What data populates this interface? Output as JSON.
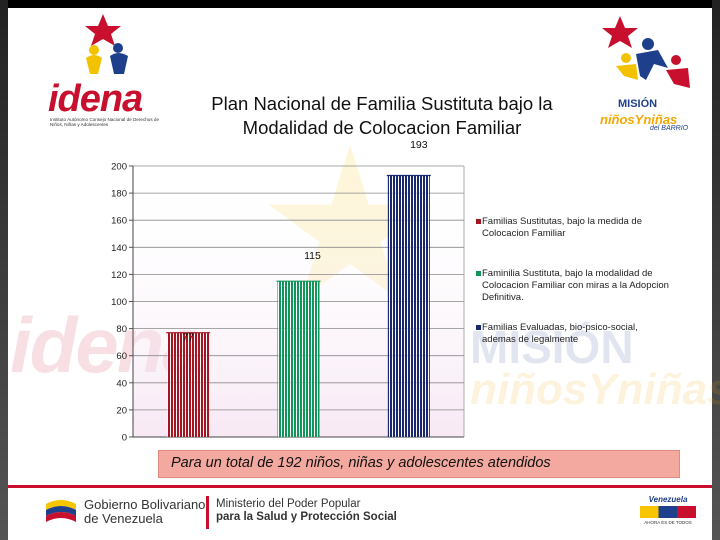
{
  "slide": {
    "title": "Plan Nacional de Familia Sustituta bajo la Modalidad de Colocacion Familiar",
    "caption": "Para un total de 192 niños, niñas y adolescentes atendidos"
  },
  "logos": {
    "left_word": "idena",
    "left_subtitle": "Instituto Autónomo Consejo Nacional de Derechos de Niños, Niñas y Adolescentes",
    "right_line1": "MISIÓN",
    "right_line2": "niñosYniñas",
    "right_line3": "del BARRIO"
  },
  "footer": {
    "gov_line1": "Gobierno Bolivariano",
    "gov_line2": "de Venezuela",
    "ministry_line1": "Ministerio del Poder Popular",
    "ministry_line2": "para la Salud y Protección Social",
    "brand_word": "Venezuela",
    "brand_tag": "AHORA ES DE TODOS"
  },
  "colors": {
    "accent_red": "#c8102e",
    "accent_blue": "#1e3f8c",
    "accent_yellow": "#f6a800"
  },
  "chart_data": {
    "type": "bar",
    "title": "",
    "xlabel": "",
    "ylabel": "",
    "ylim": [
      0,
      200
    ],
    "yticks": [
      0,
      20,
      40,
      60,
      80,
      100,
      120,
      140,
      160,
      180,
      200
    ],
    "grid": true,
    "legend_position": "right",
    "series": [
      {
        "name": "Familias Sustitutas, bajo la medida de Colocacion Familiar",
        "value": 77,
        "label": "77",
        "color": "#a31621"
      },
      {
        "name": "Faminilia Sustituta, bajo la modalidad de Colocacion Familiar con miras a la Adopcion Definitiva.",
        "value": 115,
        "label": "115",
        "color": "#11955a"
      },
      {
        "name": "Familias Evaluadas, bio-psico-social, ademas de legalmente",
        "value": 193,
        "label": "193",
        "color": "#1a2870"
      }
    ]
  }
}
